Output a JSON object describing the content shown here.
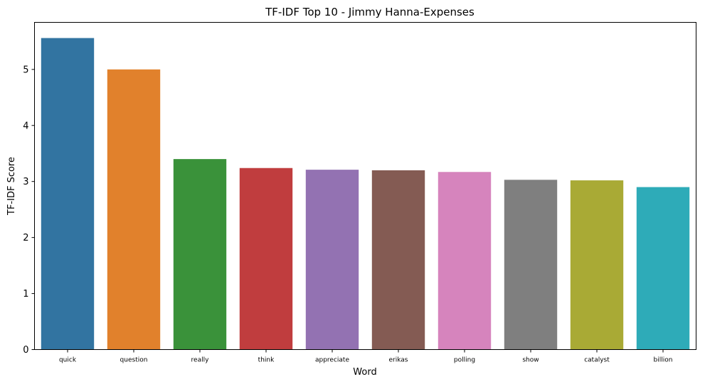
{
  "chart_data": {
    "type": "bar",
    "title": "TF-IDF Top 10 - Jimmy Hanna-Expenses",
    "xlabel": "Word",
    "ylabel": "TF-IDF Score",
    "categories": [
      "quick",
      "question",
      "really",
      "think",
      "appreciate",
      "erikas",
      "polling",
      "show",
      "catalyst",
      "billion"
    ],
    "values": [
      5.56,
      5.0,
      3.4,
      3.24,
      3.21,
      3.2,
      3.17,
      3.03,
      3.02,
      2.9
    ],
    "colors": [
      "#3274a1",
      "#e1812c",
      "#3a923a",
      "#c03d3e",
      "#9372b2",
      "#845b53",
      "#d684bd",
      "#7f7f7f",
      "#a9aa35",
      "#2eabb8"
    ],
    "ylim": [
      0,
      5.84
    ],
    "yticks": [
      0,
      1,
      2,
      3,
      4,
      5
    ],
    "grid": false,
    "legend": "none"
  }
}
